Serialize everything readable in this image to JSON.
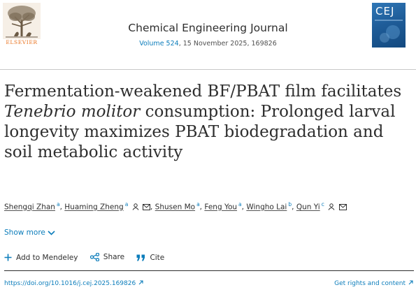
{
  "header": {
    "publisher": "ELSEVIER",
    "journal_title": "Chemical Engineering Journal",
    "volume_link": "Volume 524",
    "volume_rest": ", 15 November 2025, 169826",
    "cover_label": "CEJ"
  },
  "article": {
    "title_part1": "Fermentation-weakened BF/PBAT film facilitates ",
    "title_italic": "Tenebrio molitor",
    "title_part2": " consumption: Prolonged larval longevity maximizes PBAT biodegradation and soil metabolic activity"
  },
  "authors": [
    {
      "name": "Shengqi Zhan",
      "aff": "a"
    },
    {
      "name": "Huaming Zheng",
      "aff": "a"
    },
    {
      "name": "Shusen Mo",
      "aff": "a"
    },
    {
      "name": "Feng You",
      "aff": "a"
    },
    {
      "name": "Wingho Lai",
      "aff": "b"
    },
    {
      "name": "Qun Yi",
      "aff": "c"
    }
  ],
  "show_more_label": "Show more",
  "actions": {
    "mendeley": "Add to Mendeley",
    "share": "Share",
    "cite": "Cite"
  },
  "links": {
    "doi": "https://doi.org/10.1016/j.cej.2025.169826",
    "rights": "Get rights and content"
  },
  "colors": {
    "link": "#0c7dbb",
    "text": "#2e2e2e",
    "elsevier_orange": "#e9711c",
    "cover_blue": "#1f5d99"
  }
}
